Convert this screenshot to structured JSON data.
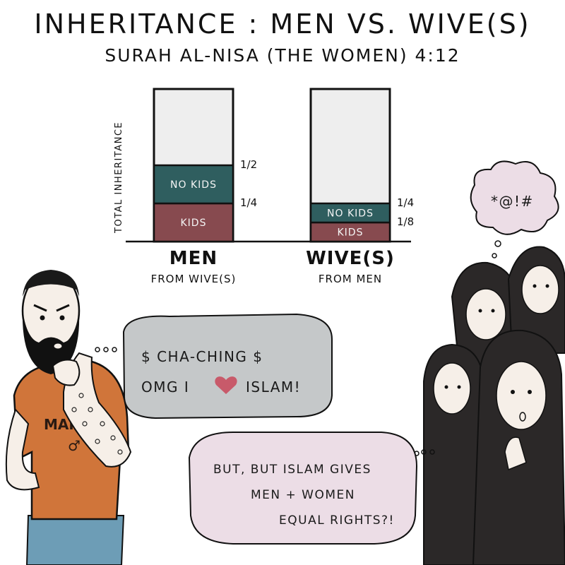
{
  "title": "INHERITANCE : MEN VS. WIVE(S)",
  "subtitle": "SURAH AL-NISA (THE WOMEN) 4:12",
  "chart_data": {
    "type": "bar",
    "stacked": true,
    "ylabel": "TOTAL INHERITANCE",
    "ylim": [
      0,
      1
    ],
    "categories": [
      {
        "label": "MEN",
        "sublabel": "FROM WIVE(S)"
      },
      {
        "label": "WIVE(S)",
        "sublabel": "FROM MEN"
      }
    ],
    "series": [
      {
        "name": "KIDS",
        "values": [
          0.25,
          0.125
        ],
        "color": "#874a4f",
        "marker_labels": [
          "1/4",
          "1/8"
        ]
      },
      {
        "name": "NO KIDS",
        "values": [
          0.5,
          0.25
        ],
        "color": "#2f5e5f",
        "marker_labels": [
          "1/2",
          "1/4"
        ]
      }
    ],
    "remainder_color": "#eeeeee"
  },
  "bubbles": {
    "man": [
      "$ CHA-CHING $",
      "OMG I",
      "ISLAM!"
    ],
    "women": [
      "BUT, BUT ISLAM GIVES",
      "MEN + WOMEN",
      "EQUAL RIGHTS?!"
    ],
    "cloud": "*@!#"
  },
  "shirt": {
    "text": "MAN",
    "symbol": "♂"
  },
  "colors": {
    "bubble_man": "#c5c8c9",
    "bubble_women": "#ecdde6",
    "shirt": "#d0753a",
    "jeans": "#6d9db6",
    "skin": "#f6efe8",
    "hijab": "#2b2828"
  }
}
